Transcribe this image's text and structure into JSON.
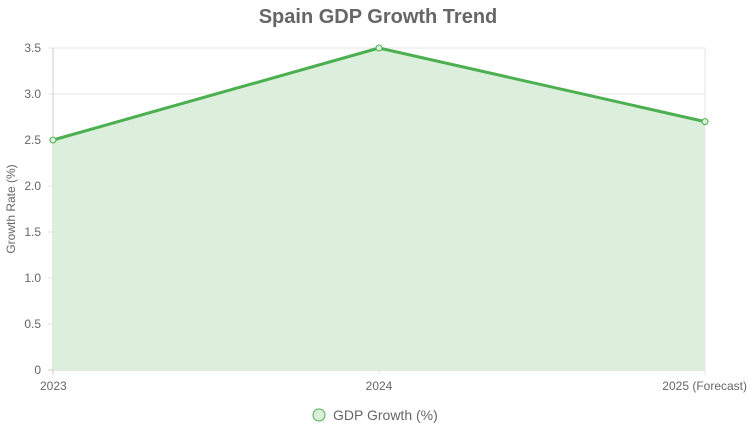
{
  "chart_data": {
    "type": "area",
    "title": "Spain GDP Growth Trend",
    "xlabel": "",
    "ylabel": "Growth Rate (%)",
    "categories": [
      "2023",
      "2024",
      "2025 (Forecast)"
    ],
    "series": [
      {
        "name": "GDP Growth (%)",
        "values": [
          2.5,
          3.5,
          2.7
        ],
        "color": "#4CAF50",
        "fill": "#DCEFDC"
      }
    ],
    "ylim": [
      0,
      3.5
    ],
    "yticks": [
      "0",
      "0.5",
      "1.0",
      "1.5",
      "2.0",
      "2.5",
      "3.0",
      "3.5"
    ],
    "grid": true,
    "legend_position": "bottom"
  }
}
